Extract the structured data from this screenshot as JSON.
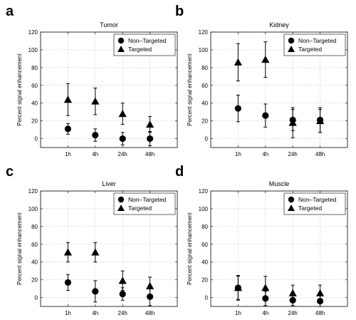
{
  "chart_data": [
    {
      "type": "scatter",
      "panel_letter": "a",
      "title": "Tumor",
      "ylabel": "Percent signal enhancement",
      "categories": [
        "1h",
        "4h",
        "24h",
        "48h"
      ],
      "ylim": [
        -10,
        120
      ],
      "yticks": [
        0,
        20,
        40,
        60,
        80,
        100,
        120
      ],
      "grid": true,
      "legend_position": "top-right",
      "series": [
        {
          "name": "Non–Targeted",
          "marker": "circle",
          "values": [
            11,
            4,
            0,
            0
          ],
          "errors": [
            6,
            7,
            7,
            8
          ]
        },
        {
          "name": "Targeted",
          "marker": "triangle",
          "values": [
            44,
            42,
            28,
            16
          ],
          "errors": [
            18,
            15,
            12,
            9
          ]
        }
      ]
    },
    {
      "type": "scatter",
      "panel_letter": "b",
      "title": "Kidney",
      "ylabel": "Percent signal enhancement",
      "categories": [
        "1h",
        "4h",
        "24h",
        "48h"
      ],
      "ylim": [
        -10,
        120
      ],
      "yticks": [
        0,
        20,
        40,
        60,
        80,
        100,
        120
      ],
      "grid": true,
      "legend_position": "top-right",
      "series": [
        {
          "name": "Non–Targeted",
          "marker": "circle",
          "values": [
            34,
            26,
            21,
            21
          ],
          "errors": [
            15,
            13,
            12,
            14
          ]
        },
        {
          "name": "Targeted",
          "marker": "triangle",
          "values": [
            86,
            89,
            18,
            20
          ],
          "errors": [
            21,
            20,
            17,
            13
          ]
        }
      ]
    },
    {
      "type": "scatter",
      "panel_letter": "c",
      "title": "Liver",
      "ylabel": "Percent signal enhancement",
      "categories": [
        "1h",
        "4h",
        "24h",
        "48h"
      ],
      "ylim": [
        -10,
        120
      ],
      "yticks": [
        0,
        20,
        40,
        60,
        80,
        100,
        120
      ],
      "grid": true,
      "legend_position": "top-right",
      "series": [
        {
          "name": "Non–Targeted",
          "marker": "circle",
          "values": [
            17,
            7,
            4,
            1
          ],
          "errors": [
            9,
            12,
            7,
            10
          ]
        },
        {
          "name": "Targeted",
          "marker": "triangle",
          "values": [
            51,
            51,
            19,
            13
          ],
          "errors": [
            11,
            11,
            11,
            10
          ]
        }
      ]
    },
    {
      "type": "scatter",
      "panel_letter": "d",
      "title": "Muscle",
      "ylabel": "Percent signal enhancement",
      "categories": [
        "1h",
        "4h",
        "24h",
        "48h"
      ],
      "ylim": [
        -10,
        120
      ],
      "yticks": [
        0,
        20,
        40,
        60,
        80,
        100,
        120
      ],
      "grid": true,
      "legend_position": "top-right",
      "series": [
        {
          "name": "Non–Targeted",
          "marker": "circle",
          "values": [
            11,
            -1,
            -3,
            -4
          ],
          "errors": [
            14,
            8,
            6,
            6
          ]
        },
        {
          "name": "Targeted",
          "marker": "triangle",
          "values": [
            11,
            11,
            5,
            5
          ],
          "errors": [
            13,
            13,
            9,
            9
          ]
        }
      ]
    }
  ]
}
